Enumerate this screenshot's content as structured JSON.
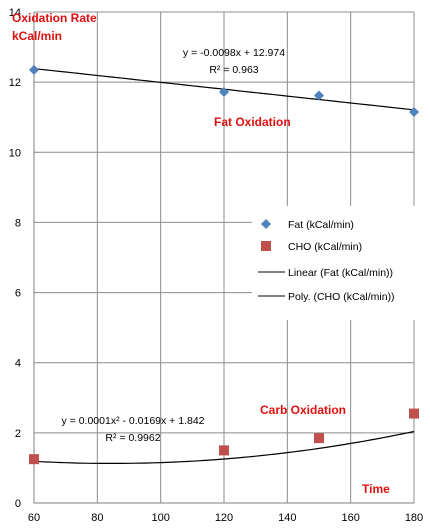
{
  "chart_data": {
    "type": "scatter",
    "x": [
      60,
      120,
      150,
      180
    ],
    "series": [
      {
        "name": "Fat (kCal/min)",
        "marker": "diamond",
        "color": "#4f81bd",
        "values": [
          12.35,
          11.72,
          11.62,
          11.15
        ]
      },
      {
        "name": "CHO (kCal/min)",
        "marker": "square",
        "color": "#c0504d",
        "values": [
          1.25,
          1.5,
          1.85,
          2.55
        ]
      }
    ],
    "trendlines": [
      {
        "name": "Linear (Fat (kCal/min))",
        "type": "linear",
        "coefficients": [
          12.974,
          -0.0098
        ],
        "color": "#000000",
        "equation": "y = -0.0098x + 12.974",
        "r_squared": "R² = 0.963"
      },
      {
        "name": "Poly. (CHO (kCal/min))",
        "type": "polynomial",
        "coefficients": [
          1.842,
          -0.0169,
          0.0001
        ],
        "color": "#000000",
        "equation": "y = 0.0001x² - 0.0169x + 1.842",
        "r_squared": "R² = 0.9962"
      }
    ],
    "title": "",
    "ylabel_line1": "Oxidation Rate",
    "ylabel_line2": "kCal/min",
    "xlabel": "Time",
    "annotations": [
      "Fat Oxidation",
      "Carb Oxidation"
    ],
    "xlim": [
      60,
      180
    ],
    "ylim": [
      0,
      14
    ],
    "xticks": [
      60,
      80,
      100,
      120,
      140,
      160,
      180
    ],
    "yticks": [
      0,
      2,
      4,
      6,
      8,
      10,
      12,
      14
    ],
    "grid": true,
    "legend_position": "right"
  }
}
